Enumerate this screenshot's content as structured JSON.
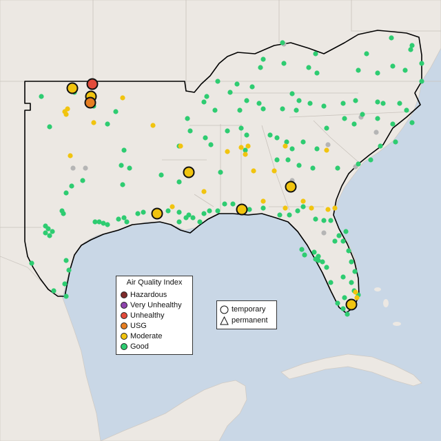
{
  "colors": {
    "hazardous": "#7e2a2a",
    "very_unhealthy": "#8e44ad",
    "unhealthy": "#e24b3b",
    "usg": "#e67e22",
    "moderate": "#f1c40f",
    "good": "#2ecc71",
    "no_data": "#b5b5b5",
    "land": "#ece8e3",
    "water": "#c9d7e6"
  },
  "aqi_legend": {
    "title": "Air Quality Index",
    "items": [
      {
        "label": "Hazardous",
        "color": "#7e2a2a"
      },
      {
        "label": "Very Unhealthy",
        "color": "#8e44ad"
      },
      {
        "label": "Unhealthy",
        "color": "#e24b3b"
      },
      {
        "label": "USG",
        "color": "#e67e22"
      },
      {
        "label": "Moderate",
        "color": "#f1c40f"
      },
      {
        "label": "Good",
        "color": "#2ecc71"
      }
    ]
  },
  "shape_legend": {
    "temporary": "temporary",
    "permanent": "permanent"
  }
}
